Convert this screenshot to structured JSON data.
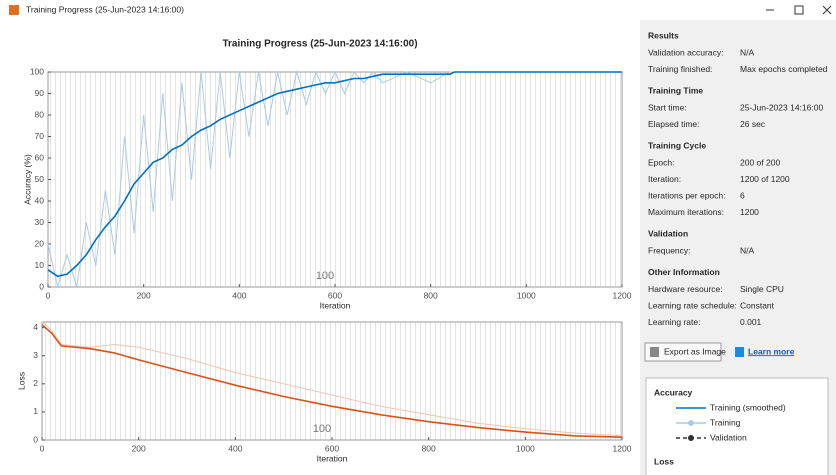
{
  "window_title": "Training Progress (25-Jun-2023 14:16:00)",
  "heading": "Training Progress (25-Jun-2023 14:16:00)",
  "chart_data": [
    {
      "type": "line",
      "ylabel": "Accuracy (%)",
      "xlabel": "Iteration",
      "annotation": "100",
      "x": [
        0,
        20,
        40,
        60,
        80,
        100,
        120,
        140,
        160,
        180,
        200,
        220,
        240,
        260,
        280,
        300,
        320,
        340,
        360,
        380,
        400,
        420,
        440,
        460,
        480,
        500,
        520,
        540,
        560,
        580,
        600,
        620,
        640,
        660,
        680,
        700,
        750,
        800,
        840,
        850,
        1000,
        1200
      ],
      "xlim": [
        0,
        1200
      ],
      "ylim": [
        0,
        100
      ],
      "xticks": [
        0,
        200,
        400,
        600,
        800,
        1000,
        1200
      ],
      "yticks": [
        0,
        10,
        20,
        30,
        40,
        50,
        60,
        70,
        80,
        90,
        100
      ],
      "series": [
        {
          "name": "Training",
          "color": "#a8cbe6",
          "values": [
            20,
            0,
            15,
            0,
            30,
            10,
            45,
            15,
            70,
            25,
            80,
            35,
            90,
            40,
            95,
            50,
            100,
            55,
            100,
            60,
            100,
            70,
            100,
            75,
            100,
            80,
            100,
            85,
            100,
            90,
            100,
            90,
            100,
            95,
            100,
            95,
            100,
            95,
            100,
            100,
            100,
            100
          ]
        },
        {
          "name": "Training (smoothed)",
          "color": "#0072bd",
          "values": [
            8,
            5,
            6,
            10,
            15,
            22,
            28,
            33,
            40,
            48,
            53,
            58,
            60,
            64,
            66,
            70,
            73,
            75,
            78,
            80,
            82,
            84,
            86,
            88,
            90,
            91,
            92,
            93,
            94,
            95,
            95,
            96,
            97,
            97,
            98,
            99,
            99,
            99,
            99,
            100,
            100,
            100
          ]
        }
      ]
    },
    {
      "type": "line",
      "ylabel": "Loss",
      "xlabel": "Iteration",
      "annotation": "100",
      "x": [
        0,
        20,
        40,
        100,
        150,
        200,
        300,
        400,
        500,
        600,
        700,
        800,
        900,
        1000,
        1100,
        1200
      ],
      "xlim": [
        0,
        1200
      ],
      "ylim": [
        0,
        4.2
      ],
      "xticks": [
        0,
        200,
        400,
        600,
        800,
        1000,
        1200
      ],
      "yticks": [
        0,
        1,
        2,
        3,
        4
      ],
      "series": [
        {
          "name": "Training",
          "color": "#f4c4ae",
          "values": [
            4.2,
            3.9,
            3.4,
            3.3,
            3.4,
            3.3,
            2.9,
            2.4,
            2.0,
            1.6,
            1.2,
            0.9,
            0.6,
            0.4,
            0.25,
            0.15
          ]
        },
        {
          "name": "Training (smoothed)",
          "color": "#d95319",
          "values": [
            4.1,
            3.8,
            3.35,
            3.25,
            3.1,
            2.85,
            2.4,
            1.95,
            1.55,
            1.2,
            0.9,
            0.65,
            0.45,
            0.28,
            0.15,
            0.1
          ]
        }
      ]
    }
  ],
  "panel": [
    {
      "heading": "Results",
      "rows": [
        [
          "Validation accuracy:",
          "N/A"
        ],
        [
          "Training finished:",
          "Max epochs completed"
        ]
      ]
    },
    {
      "heading": "Training Time",
      "rows": [
        [
          "Start time:",
          "25-Jun-2023 14:16:00"
        ],
        [
          "Elapsed time:",
          "26 sec"
        ]
      ]
    },
    {
      "heading": "Training Cycle",
      "rows": [
        [
          "Epoch:",
          "200 of 200"
        ],
        [
          "Iteration:",
          "1200 of 1200"
        ],
        [
          "Iterations per epoch:",
          "6"
        ],
        [
          "Maximum iterations:",
          "1200"
        ]
      ]
    },
    {
      "heading": "Validation",
      "rows": [
        [
          "Frequency:",
          "N/A"
        ]
      ]
    },
    {
      "heading": "Other Information",
      "rows": [
        [
          "Hardware resource:",
          "Single CPU"
        ],
        [
          "Learning rate schedule:",
          "Constant"
        ],
        [
          "Learning rate:",
          "0.001"
        ]
      ]
    }
  ],
  "export_button": "Export as Image",
  "learn_more": "Learn more",
  "legend": {
    "accuracy_heading": "Accuracy",
    "validation": "Validation",
    "loss_heading": "Loss"
  }
}
